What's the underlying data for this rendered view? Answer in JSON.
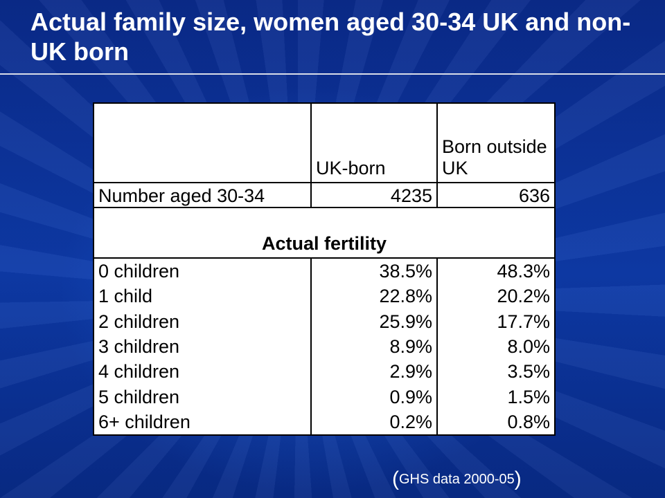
{
  "slide": {
    "title": "Actual family size, women aged 30-34 UK and non-UK born",
    "source_open": "(",
    "source_text": "GHS data 2000-05",
    "source_close": ")"
  },
  "table": {
    "header": [
      "",
      "UK-born",
      "Born outside UK"
    ],
    "count_row": {
      "label": "Number aged 30-34",
      "uk": "4235",
      "non_uk": "636"
    },
    "section_label": "Actual fertility",
    "rows": [
      {
        "label": "0 children",
        "uk": "38.5%",
        "non_uk": "48.3%"
      },
      {
        "label": "1 child",
        "uk": "22.8%",
        "non_uk": "20.2%"
      },
      {
        "label": "2 children",
        "uk": "25.9%",
        "non_uk": "17.7%"
      },
      {
        "label": "3 children",
        "uk": "8.9%",
        "non_uk": "8.0%"
      },
      {
        "label": "4 children",
        "uk": "2.9%",
        "non_uk": "3.5%"
      },
      {
        "label": "5 children",
        "uk": "0.9%",
        "non_uk": "1.5%"
      },
      {
        "label": "6+ children",
        "uk": "0.2%",
        "non_uk": "0.8%"
      }
    ]
  }
}
